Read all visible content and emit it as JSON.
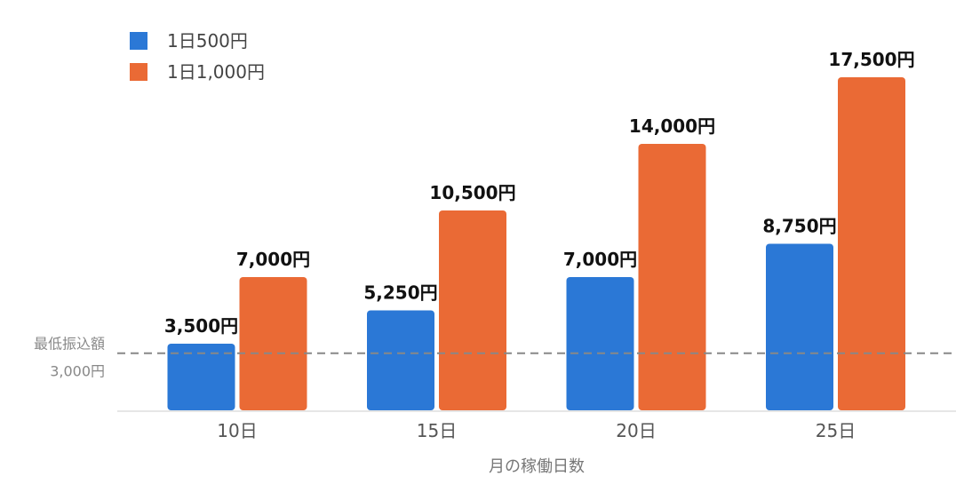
{
  "chart_data": {
    "type": "bar",
    "categories": [
      "10日",
      "15日",
      "20日",
      "25日"
    ],
    "series": [
      {
        "name": "1日500円",
        "color": "#2b78d6",
        "values": [
          3500,
          5250,
          7000,
          8750
        ],
        "labels": [
          "3,500円",
          "5,250円",
          "7,000円",
          "8,750円"
        ]
      },
      {
        "name": "1日1,000円",
        "color": "#ea6a35",
        "values": [
          7000,
          10500,
          14000,
          17500
        ],
        "labels": [
          "7,000円",
          "10,500円",
          "14,000円",
          "17,500円"
        ]
      }
    ],
    "xlabel": "月の稼働日数",
    "ylabel": "",
    "ylim": [
      0,
      17500
    ],
    "grid": false,
    "legend_position": "top-left",
    "reference_line": {
      "value": 3000,
      "label_line1": "最低振込額",
      "label_line2": "3,000円",
      "style": "dashed",
      "color": "#888888"
    }
  }
}
